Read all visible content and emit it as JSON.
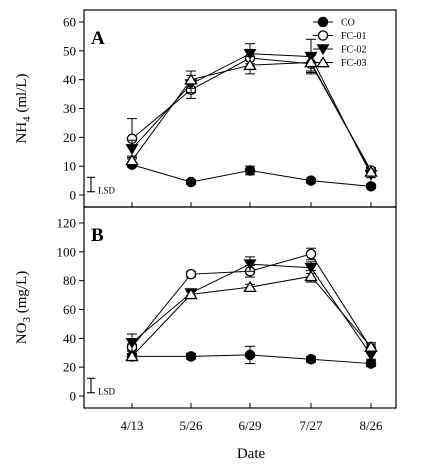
{
  "chart_data": [
    {
      "type": "line",
      "panel_label": "A",
      "ylabel": "NH4 (ml/L)",
      "ylabel_main": "NH",
      "ylabel_sub": "4",
      "ylabel_unit": " (ml/L)",
      "ylim": [
        0,
        60
      ],
      "yticks": [
        0,
        10,
        20,
        30,
        40,
        50,
        60
      ],
      "x": [
        "4/13",
        "5/26",
        "6/29",
        "7/27",
        "8/26"
      ],
      "lsd_label": "LSD",
      "lsd_half": 2.5,
      "series": [
        {
          "name": "CO",
          "marker": "filled-circle",
          "values": [
            10.5,
            4.5,
            8.5,
            5.0,
            3.0
          ],
          "errors": [
            0.8,
            0.8,
            1.5,
            0.8,
            0.8
          ]
        },
        {
          "name": "FC-01",
          "marker": "open-circle",
          "values": [
            19.5,
            36.5,
            47.5,
            45.5,
            8.5
          ],
          "errors": [
            7.0,
            3.0,
            3.0,
            3.0,
            1.0
          ]
        },
        {
          "name": "FC-02",
          "marker": "filled-triangle-down",
          "values": [
            16.0,
            38.5,
            49.0,
            48.0,
            7.0
          ],
          "errors": [
            3.0,
            3.0,
            3.5,
            6.0,
            1.0
          ]
        },
        {
          "name": "FC-03",
          "marker": "open-triangle-up",
          "values": [
            12.0,
            40.0,
            45.0,
            46.0,
            8.0
          ],
          "errors": [
            1.5,
            3.0,
            3.0,
            3.0,
            1.0
          ]
        }
      ]
    },
    {
      "type": "line",
      "panel_label": "B",
      "ylabel": "NO3 (mg/L)",
      "ylabel_main": "NO",
      "ylabel_sub": "3",
      "ylabel_unit": " (mg/L)",
      "ylim": [
        0,
        120
      ],
      "yticks": [
        0,
        20,
        40,
        60,
        80,
        100,
        120
      ],
      "x": [
        "4/13",
        "5/26",
        "6/29",
        "7/27",
        "8/26"
      ],
      "xlabel": "Date",
      "lsd_label": "LSD",
      "lsd_half": 5,
      "series": [
        {
          "name": "CO",
          "marker": "filled-circle",
          "values": [
            27.5,
            27.5,
            28.5,
            25.5,
            22.5
          ],
          "errors": [
            2.0,
            2.0,
            6.0,
            2.0,
            2.0
          ]
        },
        {
          "name": "FC-01",
          "marker": "open-circle",
          "values": [
            34.0,
            84.5,
            86.5,
            98.5,
            33.0
          ],
          "errors": [
            2.0,
            2.0,
            4.0,
            4.0,
            3.0
          ]
        },
        {
          "name": "FC-02",
          "marker": "filled-triangle-down",
          "values": [
            37.0,
            71.5,
            91.5,
            89.0,
            28.5
          ],
          "errors": [
            6.0,
            2.0,
            5.0,
            4.0,
            3.0
          ]
        },
        {
          "name": "FC-03",
          "marker": "open-triangle-up",
          "values": [
            27.5,
            70.5,
            75.5,
            83.0,
            34.0
          ],
          "errors": [
            2.0,
            2.0,
            2.0,
            4.0,
            3.0
          ]
        }
      ]
    }
  ]
}
